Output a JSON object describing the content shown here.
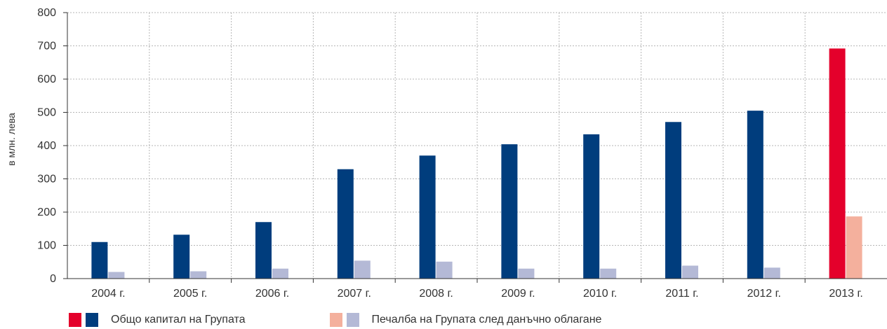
{
  "chart_data": {
    "type": "bar",
    "title": "",
    "xlabel": "",
    "ylabel": "в млн. лева",
    "ylim": [
      0,
      800
    ],
    "yticks": [
      0,
      100,
      200,
      300,
      400,
      500,
      600,
      700,
      800
    ],
    "grid": true,
    "legend_position": "bottom-left",
    "categories": [
      "2004 г.",
      "2005 г.",
      "2006 г.",
      "2007 г.",
      "2008 г.",
      "2009 г.",
      "2010 г.",
      "2011 г.",
      "2012 г.",
      "2013 г."
    ],
    "series": [
      {
        "name": "Общо капитал на Групата",
        "values": [
          110,
          132,
          170,
          329,
          370,
          404,
          434,
          471,
          505,
          692
        ],
        "color": "#003d7d",
        "highlight_color": "#e4002b"
      },
      {
        "name": "Печалба на Групата след данъчно облагане",
        "values": [
          20,
          22,
          30,
          54,
          51,
          30,
          30,
          39,
          33,
          187
        ],
        "color": "#b4b9d6",
        "highlight_color": "#f4b09d"
      }
    ],
    "highlight_category": "2013 г."
  }
}
